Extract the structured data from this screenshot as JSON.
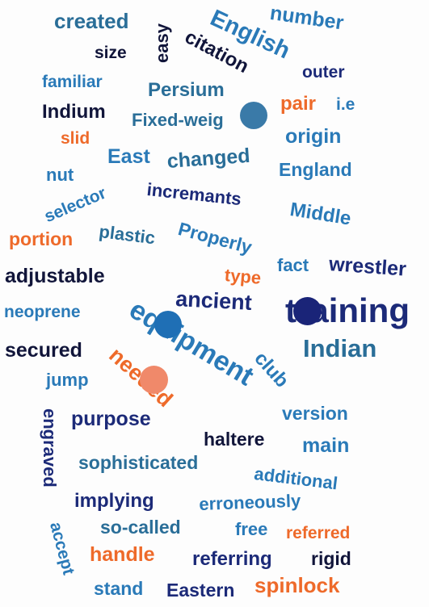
{
  "colors": {
    "navy": "#1c2a78",
    "dark": "#11153a",
    "blue": "#2a7ab8",
    "teal": "#2a6e98",
    "orange": "#ee6a2a",
    "dot_steel": "#3a7aa8",
    "dot_blue": "#1f6fb5",
    "dot_navy": "#1a2478",
    "dot_peach": "#f0896a"
  },
  "words": [
    {
      "text": "created",
      "color": "teal"
    },
    {
      "text": "easy",
      "color": "dark"
    },
    {
      "text": "English",
      "color": "blue"
    },
    {
      "text": "number",
      "color": "blue"
    },
    {
      "text": "size",
      "color": "dark"
    },
    {
      "text": "citation",
      "color": "dark"
    },
    {
      "text": "familiar",
      "color": "blue"
    },
    {
      "text": "outer",
      "color": "navy"
    },
    {
      "text": "Persium",
      "color": "teal"
    },
    {
      "text": "Indium",
      "color": "dark"
    },
    {
      "text": "pair",
      "color": "orange"
    },
    {
      "text": "i.e",
      "color": "blue"
    },
    {
      "text": "Fixed-weig",
      "color": "teal"
    },
    {
      "text": "slid",
      "color": "orange"
    },
    {
      "text": "origin",
      "color": "blue"
    },
    {
      "text": "East",
      "color": "blue"
    },
    {
      "text": "changed",
      "color": "teal"
    },
    {
      "text": "England",
      "color": "blue"
    },
    {
      "text": "nut",
      "color": "blue"
    },
    {
      "text": "selector",
      "color": "blue"
    },
    {
      "text": "incremants",
      "color": "navy"
    },
    {
      "text": "Middle",
      "color": "blue"
    },
    {
      "text": "portion",
      "color": "orange"
    },
    {
      "text": "plastic",
      "color": "teal"
    },
    {
      "text": "Properly",
      "color": "blue"
    },
    {
      "text": "fact",
      "color": "blue"
    },
    {
      "text": "wrestler",
      "color": "navy"
    },
    {
      "text": "adjustable",
      "color": "dark"
    },
    {
      "text": "type",
      "color": "orange"
    },
    {
      "text": "ancient",
      "color": "navy"
    },
    {
      "text": "training",
      "color": "navy"
    },
    {
      "text": "neoprene",
      "color": "blue"
    },
    {
      "text": "equipment",
      "color": "blue"
    },
    {
      "text": "Indian",
      "color": "teal"
    },
    {
      "text": "secured",
      "color": "dark"
    },
    {
      "text": "club",
      "color": "blue"
    },
    {
      "text": "needed",
      "color": "orange"
    },
    {
      "text": "jump",
      "color": "blue"
    },
    {
      "text": "engraved",
      "color": "navy"
    },
    {
      "text": "purpose",
      "color": "navy"
    },
    {
      "text": "version",
      "color": "blue"
    },
    {
      "text": "haltere",
      "color": "dark"
    },
    {
      "text": "main",
      "color": "blue"
    },
    {
      "text": "sophisticated",
      "color": "teal"
    },
    {
      "text": "additional",
      "color": "blue"
    },
    {
      "text": "implying",
      "color": "navy"
    },
    {
      "text": "erroneously",
      "color": "blue"
    },
    {
      "text": "accept",
      "color": "blue"
    },
    {
      "text": "so-called",
      "color": "teal"
    },
    {
      "text": "free",
      "color": "blue"
    },
    {
      "text": "referred",
      "color": "orange"
    },
    {
      "text": "handle",
      "color": "orange"
    },
    {
      "text": "referring",
      "color": "navy"
    },
    {
      "text": "rigid",
      "color": "dark"
    },
    {
      "text": "stand",
      "color": "blue"
    },
    {
      "text": "Eastern",
      "color": "navy"
    },
    {
      "text": "spinlock",
      "color": "orange"
    }
  ],
  "markers": [
    {
      "color": "dot_steel"
    },
    {
      "color": "dot_blue"
    },
    {
      "color": "dot_navy"
    },
    {
      "color": "dot_peach"
    }
  ]
}
